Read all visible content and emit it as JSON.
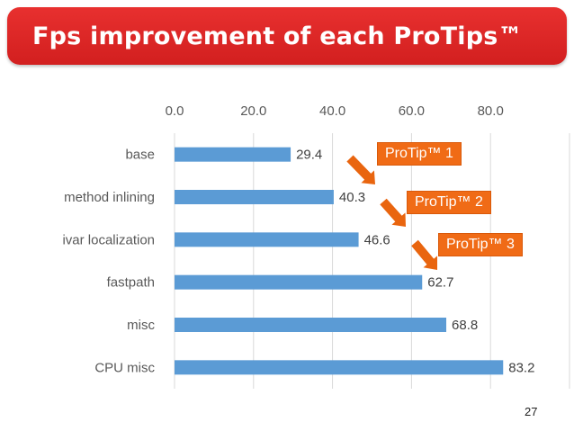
{
  "slide": {
    "title": "Fps improvement of each ProTips™",
    "page_number": "27",
    "colors": {
      "banner": "#dd2626",
      "bar": "#5b9bd5",
      "callout": "#f06b16",
      "arrow": "#e9650f"
    }
  },
  "callouts": [
    "ProTip™ 1",
    "ProTip™ 2",
    "ProTip™ 3"
  ],
  "chart_data": {
    "type": "bar",
    "orientation": "horizontal",
    "categories": [
      "base",
      "method inlining",
      "ivar localization",
      "fastpath",
      "misc",
      "CPU misc"
    ],
    "values": [
      29.4,
      40.3,
      46.6,
      62.7,
      68.8,
      83.2
    ],
    "value_labels": [
      "29.4",
      "40.3",
      "46.6",
      "62.7",
      "68.8",
      "83.2"
    ],
    "xlim": [
      0,
      100
    ],
    "x_ticks": [
      "0.0",
      "20.0",
      "40.0",
      "60.0",
      "80.0"
    ],
    "x_tick_values": [
      0,
      20,
      40,
      60,
      80
    ],
    "title": "",
    "xlabel": "",
    "ylabel": "",
    "grid": true,
    "axis_position": "top"
  }
}
